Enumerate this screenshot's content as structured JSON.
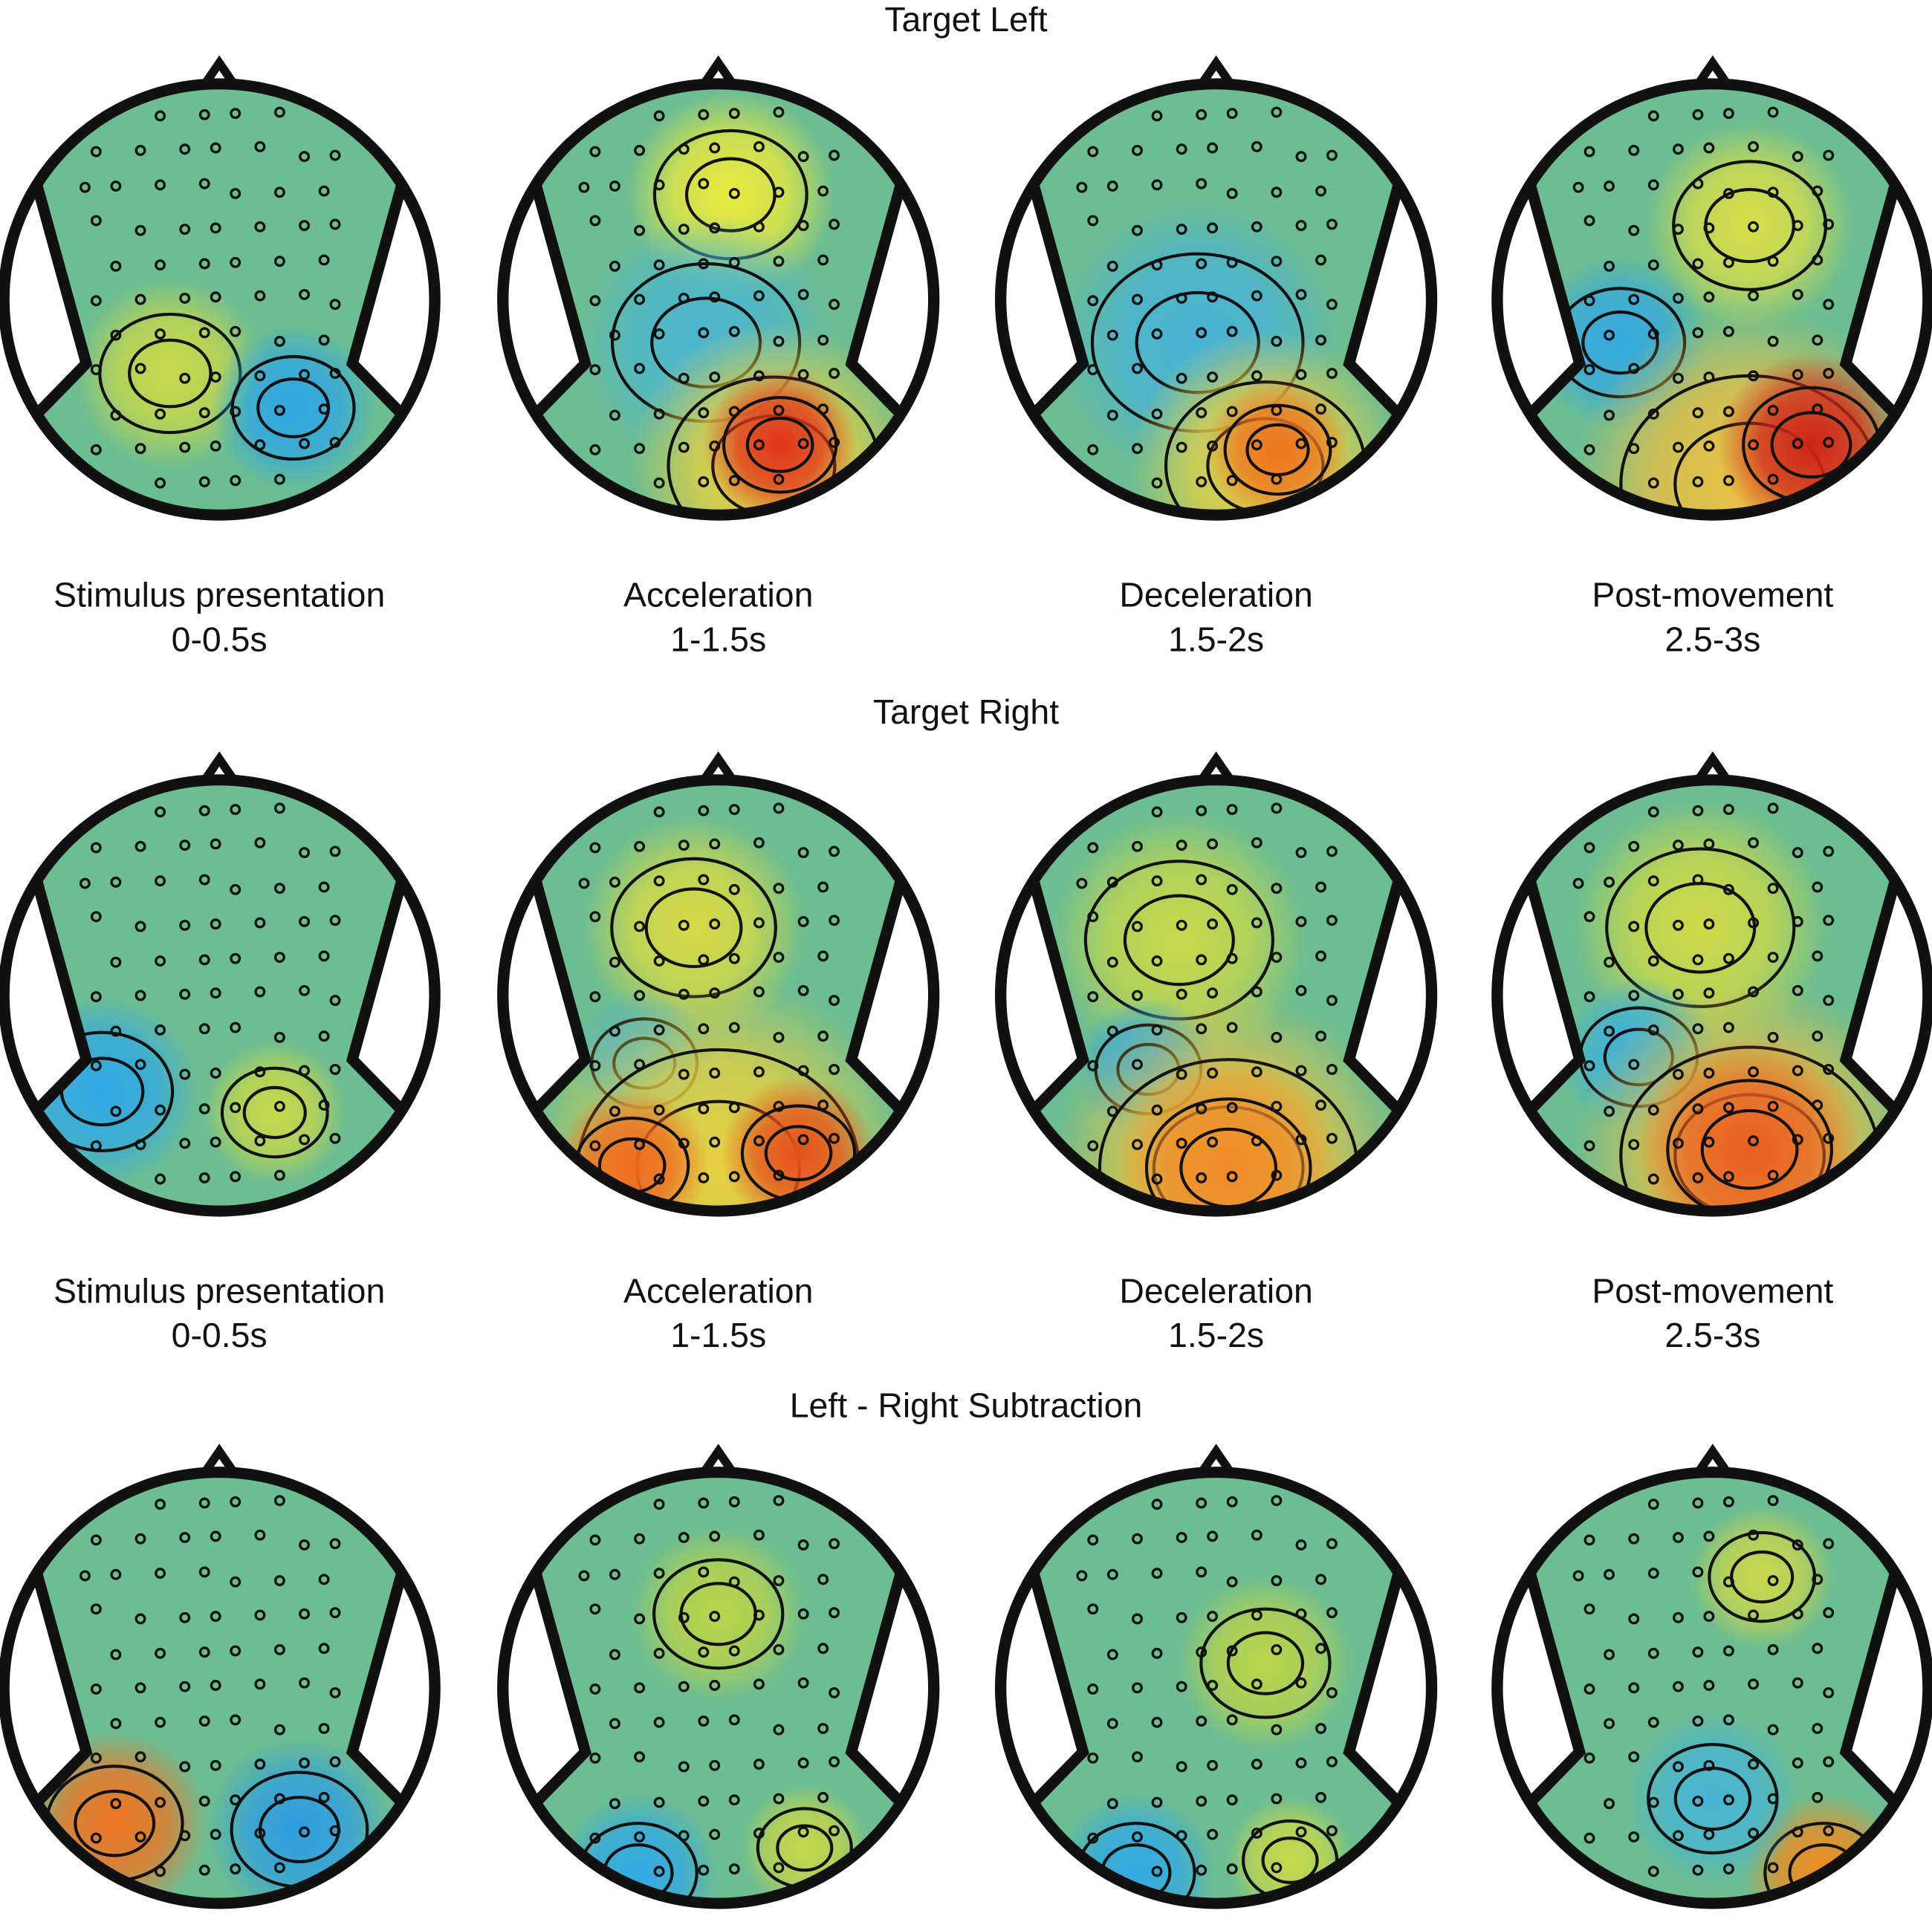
{
  "sections": [
    {
      "title": "Target Left",
      "panels": [
        {
          "label": "Stimulus presentation",
          "time": "0-0.5s"
        },
        {
          "label": "Acceleration",
          "time": "1-1.5s"
        },
        {
          "label": "Deceleration",
          "time": "1.5-2s"
        },
        {
          "label": "Post-movement",
          "time": "2.5-3s"
        }
      ]
    },
    {
      "title": "Target Right",
      "panels": [
        {
          "label": "Stimulus presentation",
          "time": "0-0.5s"
        },
        {
          "label": "Acceleration",
          "time": "1-1.5s"
        },
        {
          "label": "Deceleration",
          "time": "1.5-2s"
        },
        {
          "label": "Post-movement",
          "time": "2.5-3s"
        }
      ]
    },
    {
      "title": "Left - Right Subtraction"
    }
  ]
}
